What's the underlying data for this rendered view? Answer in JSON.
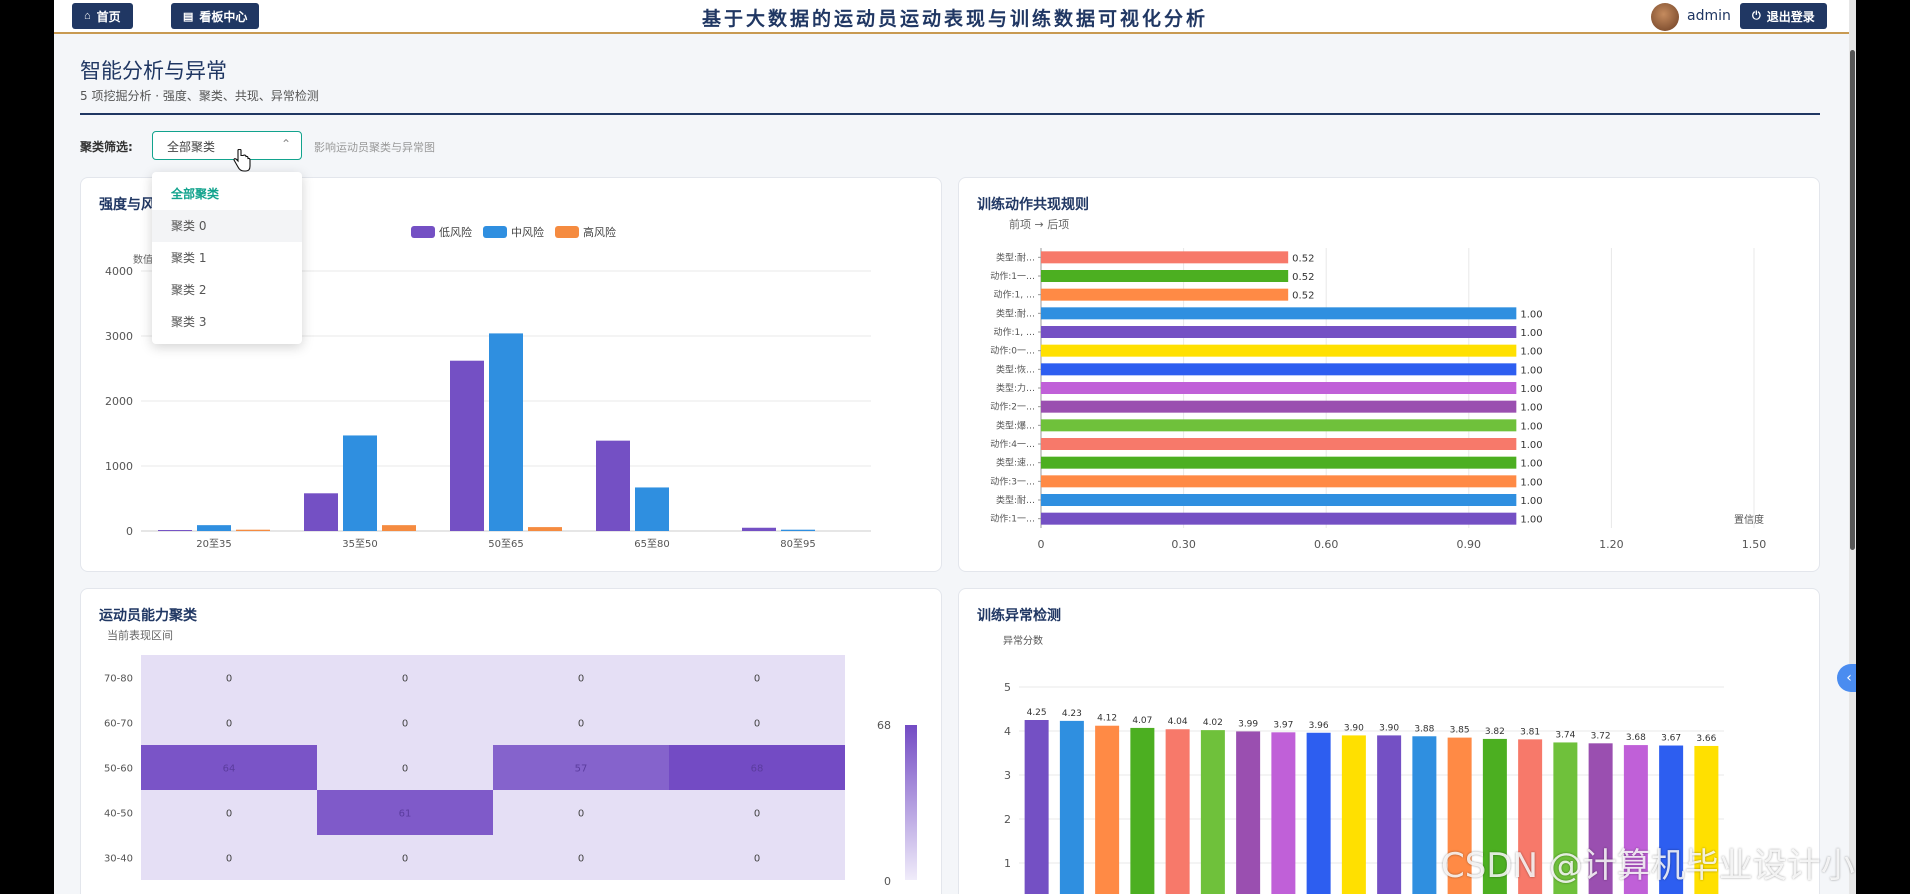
{
  "nav": {
    "home_label": "首页",
    "board_label": "看板中心",
    "logout_label": "退出登录"
  },
  "app_title": "基于大数据的运动员运动表现与训练数据可视化分析",
  "user": {
    "name": "admin"
  },
  "page": {
    "title": "智能分析与异常",
    "subtitle": "5 项挖掘分析 · 强度、聚类、共现、异常检测"
  },
  "filter": {
    "label": "聚类筛选:",
    "value": "全部聚类",
    "hint": "影响运动员聚类与异常图",
    "options": [
      "全部聚类",
      "聚类 0",
      "聚类 1",
      "聚类 2",
      "聚类 3"
    ]
  },
  "watermark": "CSDN @计算机毕业设计小明哥",
  "chart_data": [
    {
      "id": "intensity",
      "type": "bar",
      "title": "强度与风",
      "ylabel": "数值",
      "categories": [
        "20至35",
        "35至50",
        "50至65",
        "65至80",
        "80至95"
      ],
      "series": [
        {
          "name": "低风险",
          "color": "#7450c4",
          "values": [
            15,
            580,
            2620,
            1390,
            50
          ]
        },
        {
          "name": "中风险",
          "color": "#2f8fe0",
          "values": [
            90,
            1470,
            3040,
            670,
            20
          ]
        },
        {
          "name": "高风险",
          "color": "#f58b40",
          "values": [
            20,
            90,
            60,
            0,
            0
          ]
        }
      ],
      "ylim": [
        0,
        4000
      ],
      "yticks": [
        0,
        1000,
        2000,
        3000,
        4000
      ],
      "legend": "top-center"
    },
    {
      "id": "cooccurrence",
      "type": "bar",
      "orientation": "horizontal",
      "title": "训练动作共现规则",
      "subtitle": "前项 → 后项",
      "xlabel": "置信度",
      "categories": [
        "类型:耐…",
        "动作:1一…",
        "动作:1, …",
        "类型:耐…",
        "动作:1, …",
        "动作:0一…",
        "类型:恢…",
        "类型:力…",
        "动作:2一…",
        "类型:爆…",
        "动作:4一…",
        "类型:速…",
        "动作:3一…",
        "类型:耐…",
        "动作:1一…"
      ],
      "values": [
        0.52,
        0.52,
        0.52,
        1.0,
        1.0,
        1.0,
        1.0,
        1.0,
        1.0,
        1.0,
        1.0,
        1.0,
        1.0,
        1.0,
        1.0
      ],
      "value_labels": [
        "0.52",
        "0.52",
        "0.52",
        "1.00",
        "1.00",
        "1.00",
        "1.00",
        "1.00",
        "1.00",
        "1.00",
        "1.00",
        "1.00",
        "1.00",
        "1.00",
        "1.00"
      ],
      "colors": [
        "#f7796a",
        "#4caf21",
        "#ff8a45",
        "#2f8fe0",
        "#7450c4",
        "#ffe000",
        "#2d5ef0",
        "#c060d8",
        "#9a4fb0",
        "#6fc13b",
        "#f7796a",
        "#4caf21",
        "#ff8a45",
        "#2f8fe0",
        "#7450c4"
      ],
      "xlim": [
        0,
        1.5
      ],
      "xticks": [
        "0",
        "0.30",
        "0.60",
        "0.90",
        "1.20",
        "1.50"
      ]
    },
    {
      "id": "cluster",
      "type": "heatmap",
      "title": "运动员能力聚类",
      "subtitle": "当前表现区间",
      "rows": [
        "70-80",
        "60-70",
        "50-60",
        "40-50",
        "30-40"
      ],
      "values": [
        [
          0,
          0,
          0,
          0
        ],
        [
          0,
          0,
          0,
          0
        ],
        [
          64,
          0,
          57,
          68
        ],
        [
          0,
          61,
          0,
          0
        ],
        [
          0,
          0,
          0,
          0
        ]
      ],
      "range": [
        0,
        68
      ],
      "range_labels": [
        "68",
        "0"
      ]
    },
    {
      "id": "anomaly",
      "type": "bar",
      "title": "训练异常检测",
      "ylabel": "异常分数",
      "values": [
        4.25,
        4.23,
        4.12,
        4.07,
        4.04,
        4.02,
        3.99,
        3.97,
        3.96,
        3.9,
        3.9,
        3.88,
        3.85,
        3.82,
        3.81,
        3.74,
        3.72,
        3.68,
        3.67,
        3.66
      ],
      "value_labels": [
        "4.25",
        "4.23",
        "4.12",
        "4.07",
        "4.04",
        "4.02",
        "3.99",
        "3.97",
        "3.96",
        "3.90",
        "3.90",
        "3.88",
        "3.85",
        "3.82",
        "3.81",
        "3.74",
        "3.72",
        "3.68",
        "3.67",
        "3.66"
      ],
      "colors": [
        "#7450c4",
        "#2f8fe0",
        "#ff8a45",
        "#4caf21",
        "#f7796a",
        "#6fc13b",
        "#9a4fb0",
        "#c060d8",
        "#2d5ef0",
        "#ffe000",
        "#7450c4",
        "#2f8fe0",
        "#ff8a45",
        "#4caf21",
        "#f7796a",
        "#6fc13b",
        "#9a4fb0",
        "#c060d8",
        "#2d5ef0",
        "#ffe000"
      ],
      "ylim": [
        0,
        5
      ],
      "yticks": [
        "1",
        "2",
        "3",
        "4",
        "5"
      ]
    }
  ]
}
